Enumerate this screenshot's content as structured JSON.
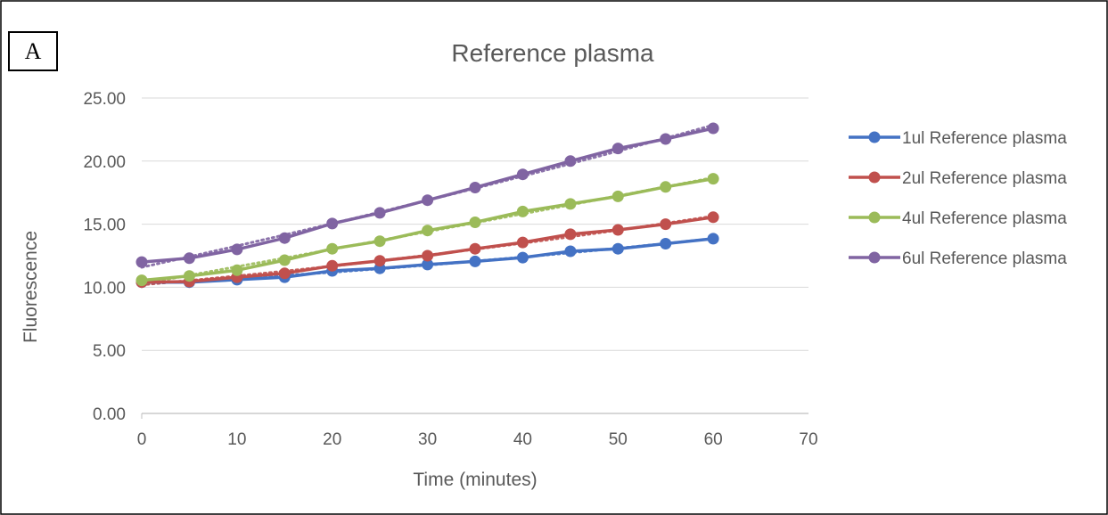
{
  "panel_label": "A",
  "chart_data": {
    "type": "line",
    "title": "Reference plasma",
    "xlabel": "Time (minutes)",
    "ylabel": "Fluorescence",
    "xlim": [
      0,
      70
    ],
    "ylim": [
      0,
      25
    ],
    "x_ticks": [
      0,
      10,
      20,
      30,
      40,
      50,
      60,
      70
    ],
    "x_tick_labels": [
      "0",
      "10",
      "20",
      "30",
      "40",
      "50",
      "60",
      "70"
    ],
    "y_ticks": [
      0,
      5,
      10,
      15,
      20,
      25
    ],
    "y_tick_labels": [
      "0.00",
      "5.00",
      "10.00",
      "15.00",
      "20.00",
      "25.00"
    ],
    "grid": "horizontal",
    "legend_position": "right",
    "x": [
      0,
      5,
      10,
      15,
      20,
      25,
      30,
      35,
      40,
      45,
      50,
      55,
      60
    ],
    "series": [
      {
        "name": "1ul Reference plasma",
        "color": "#4472C4",
        "values": [
          10.4,
          10.4,
          10.6,
          10.8,
          11.3,
          11.5,
          11.8,
          12.05,
          12.35,
          12.85,
          13.05,
          13.45,
          13.85
        ],
        "trendline": "dotted"
      },
      {
        "name": "2ul Reference plasma",
        "color": "#C0504D",
        "values": [
          10.4,
          10.45,
          10.8,
          11.1,
          11.7,
          12.1,
          12.5,
          13.05,
          13.55,
          14.2,
          14.55,
          15.0,
          15.55
        ],
        "trendline": "dotted"
      },
      {
        "name": "4ul Reference plasma",
        "color": "#9BBB59",
        "values": [
          10.55,
          10.9,
          11.35,
          12.15,
          13.05,
          13.65,
          14.5,
          15.15,
          16.0,
          16.6,
          17.2,
          17.95,
          18.6
        ],
        "trendline": "dotted"
      },
      {
        "name": "6ul Reference plasma",
        "color": "#8064A2",
        "values": [
          12.0,
          12.3,
          13.0,
          13.9,
          15.05,
          15.9,
          16.9,
          17.9,
          18.95,
          20.0,
          21.0,
          21.75,
          22.6
        ],
        "trendline": "dotted"
      }
    ]
  }
}
